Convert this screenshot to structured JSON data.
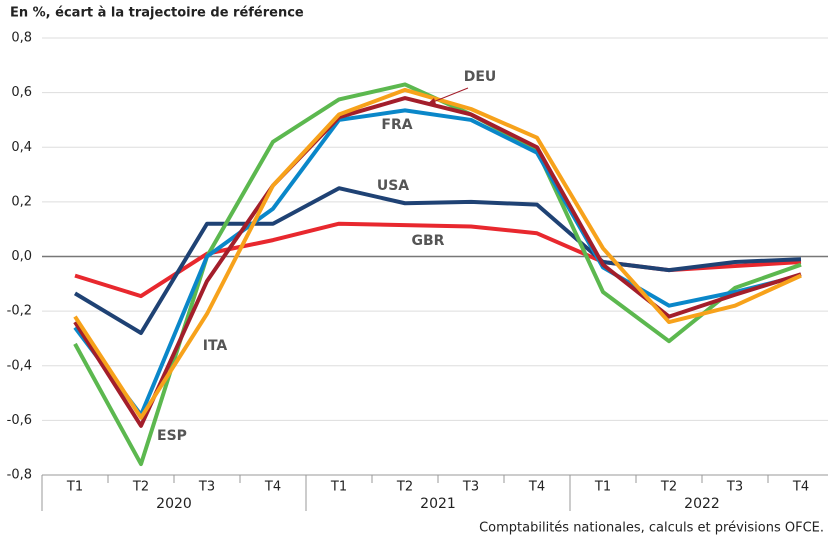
{
  "chart_data": {
    "type": "line",
    "subtitle": "En %, écart à la trajectoire de référence",
    "source": "Comptabilités nationales, calculs et prévisions OFCE.",
    "categories": [
      "T1",
      "T2",
      "T3",
      "T4",
      "T1",
      "T2",
      "T3",
      "T4",
      "T1",
      "T2",
      "T3",
      "T4"
    ],
    "groups": [
      "2020",
      "2021",
      "2022"
    ],
    "ylim": [
      -0.8,
      0.8
    ],
    "yticks": [
      {
        "value": -0.8,
        "label": "-0,8"
      },
      {
        "value": -0.6,
        "label": "-0,6"
      },
      {
        "value": -0.4,
        "label": "-0,4"
      },
      {
        "value": -0.2,
        "label": "-0,2"
      },
      {
        "value": 0,
        "label": "0,0"
      },
      {
        "value": 0.2,
        "label": "0,2"
      },
      {
        "value": 0.4,
        "label": "0,4"
      },
      {
        "value": 0.6,
        "label": "0,6"
      },
      {
        "value": 0.8,
        "label": "0,8"
      }
    ],
    "grid": true,
    "series": [
      {
        "name": "GBR",
        "color": "#e8282e",
        "values": [
          -0.07,
          -0.145,
          0.01,
          0.06,
          0.12,
          0.115,
          0.11,
          0.085,
          -0.02,
          -0.05,
          -0.035,
          -0.02
        ]
      },
      {
        "name": "USA",
        "color": "#1f4274",
        "values": [
          -0.135,
          -0.28,
          0.12,
          0.12,
          0.25,
          0.195,
          0.2,
          0.19,
          -0.02,
          -0.05,
          -0.02,
          -0.01
        ]
      },
      {
        "name": "ESP",
        "color": "#5cb84f",
        "values": [
          -0.32,
          -0.76,
          0.0,
          0.42,
          0.575,
          0.63,
          0.52,
          0.39,
          -0.13,
          -0.31,
          -0.115,
          -0.03
        ]
      },
      {
        "name": "FRA",
        "color": "#0a87c9",
        "values": [
          -0.26,
          -0.58,
          0.0,
          0.175,
          0.5,
          0.535,
          0.5,
          0.38,
          -0.04,
          -0.18,
          -0.13,
          -0.07
        ]
      },
      {
        "name": "DEU",
        "color": "#a31e2b",
        "values": [
          -0.24,
          -0.62,
          -0.09,
          0.26,
          0.51,
          0.58,
          0.52,
          0.4,
          -0.03,
          -0.22,
          -0.14,
          -0.065
        ]
      },
      {
        "name": "ITA",
        "color": "#f7a21b",
        "values": [
          -0.22,
          -0.59,
          -0.21,
          0.26,
          0.52,
          0.61,
          0.54,
          0.435,
          0.03,
          -0.24,
          -0.18,
          -0.07
        ]
      }
    ]
  }
}
